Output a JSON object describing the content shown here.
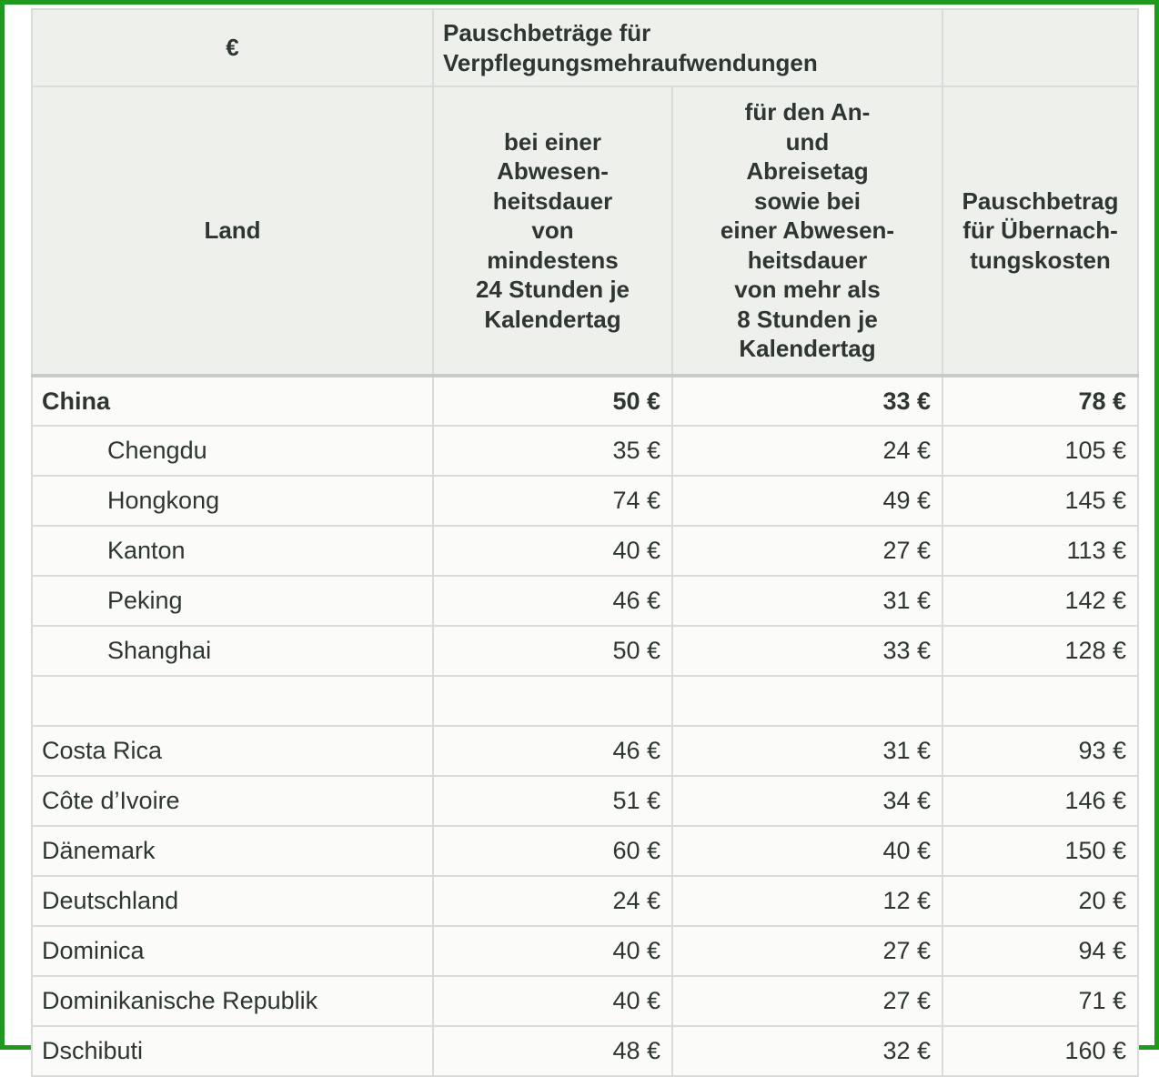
{
  "header": {
    "currency": "€",
    "group_title": "Pauschbeträge für Verpflegungsmehraufwendungen",
    "land": "Land",
    "col_24h": [
      "bei einer",
      "Abwesen-",
      "heitsdauer",
      "von",
      "mindestens",
      "24 Stunden je",
      "Kalendertag"
    ],
    "col_8h": [
      "für den An-",
      "und",
      "Abreisetag",
      "sowie bei",
      "einer Abwesen-",
      "heitsdauer",
      "von mehr als",
      "8 Stunden je",
      "Kalendertag"
    ],
    "col_night": [
      "Pauschbetrag",
      "für Übernach-",
      "tungskosten"
    ]
  },
  "rows": [
    {
      "land": "China",
      "v24": "50 €",
      "v8": "33 €",
      "night": "78 €",
      "style": "bold"
    },
    {
      "land": "Chengdu",
      "v24": "35 €",
      "v8": "24 €",
      "night": "105 €",
      "style": "sub"
    },
    {
      "land": "Hongkong",
      "v24": "74 €",
      "v8": "49 €",
      "night": "145 €",
      "style": "sub"
    },
    {
      "land": "Kanton",
      "v24": "40 €",
      "v8": "27 €",
      "night": "113 €",
      "style": "sub"
    },
    {
      "land": "Peking",
      "v24": "46 €",
      "v8": "31 €",
      "night": "142 €",
      "style": "sub"
    },
    {
      "land": "Shanghai",
      "v24": "50 €",
      "v8": "33 €",
      "night": "128 €",
      "style": "sub"
    },
    {
      "land": "",
      "v24": "",
      "v8": "",
      "night": "",
      "style": "empty"
    },
    {
      "land": "Costa Rica",
      "v24": "46 €",
      "v8": "31 €",
      "night": "93 €",
      "style": "normal"
    },
    {
      "land": "Côte d’Ivoire",
      "v24": "51 €",
      "v8": "34 €",
      "night": "146 €",
      "style": "normal"
    },
    {
      "land": "Dänemark",
      "v24": "60 €",
      "v8": "40 €",
      "night": "150 €",
      "style": "normal"
    },
    {
      "land": "Deutschland",
      "v24": "24 €",
      "v8": "12 €",
      "night": "20 €",
      "style": "normal"
    },
    {
      "land": "Dominica",
      "v24": "40 €",
      "v8": "27 €",
      "night": "94 €",
      "style": "normal"
    },
    {
      "land": "Dominikanische Republik",
      "v24": "40 €",
      "v8": "27 €",
      "night": "71 €",
      "style": "normal"
    },
    {
      "land": "Dschibuti",
      "v24": "48 €",
      "v8": "32 €",
      "night": "160 €",
      "style": "normal"
    }
  ],
  "colors": {
    "frame": "#1f9a1f",
    "header_bg": "#eef0ec",
    "grid": "#d9dcd9",
    "text": "#2e3631"
  }
}
